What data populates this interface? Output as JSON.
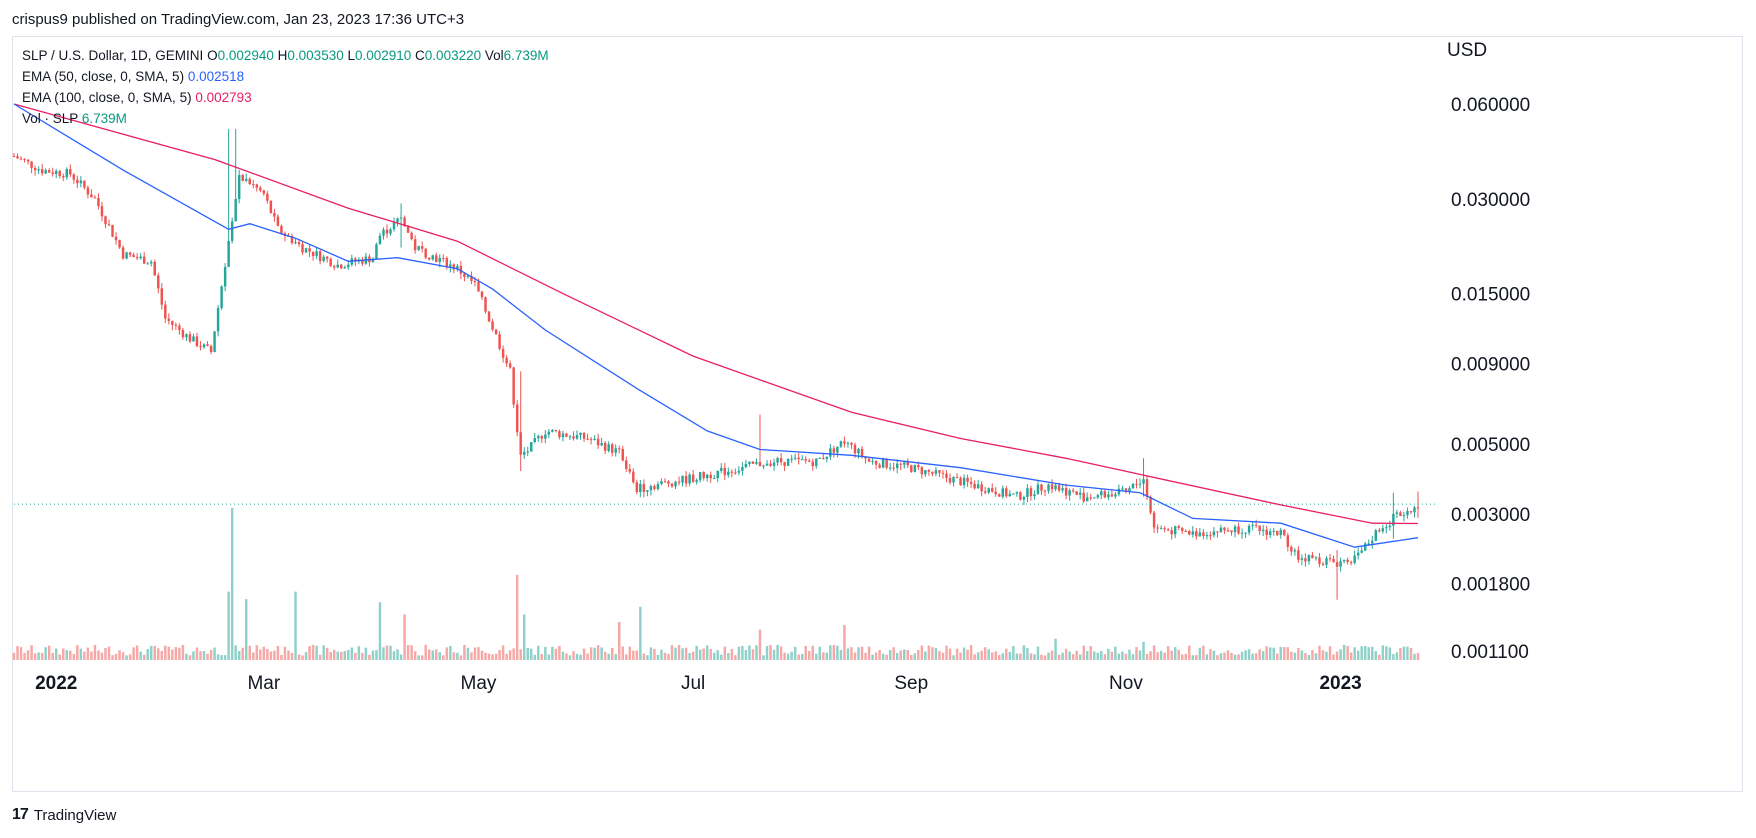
{
  "header": {
    "published_line": "crispus9 published on TradingView.com, Jan 23, 2023 17:36 UTC+3"
  },
  "legend": {
    "symbol": "SLP / U.S. Dollar, 1D, GEMINI",
    "ohlc": [
      {
        "key": "O",
        "value": "0.002940"
      },
      {
        "key": "H",
        "value": "0.003530"
      },
      {
        "key": "L",
        "value": "0.002910"
      },
      {
        "key": "C",
        "value": "0.003220"
      },
      {
        "key": "Vol",
        "value": "6.739M"
      }
    ],
    "ema50_label": "EMA (50, close, 0, SMA, 5)",
    "ema50_value": "0.002518",
    "ema100_label": "EMA (100, close, 0, SMA, 5)",
    "ema100_value": "0.002793",
    "vol_label": "Vol · SLP",
    "vol_value": "6.739M"
  },
  "footer": {
    "brand": "TradingView",
    "logo": "tradingview-logo-icon"
  },
  "colors": {
    "up": "#26a69a",
    "down": "#ef5350",
    "vol_up": "#8fd1c9",
    "vol_down": "#f5a8a6",
    "ema50": "#2962ff",
    "ema100": "#e91e63",
    "last_price_line": "#26a69a",
    "axis_text": "#131722"
  },
  "chart_data": {
    "type": "candlestick",
    "symbol": "SLP / U.S. Dollar",
    "interval": "1D",
    "exchange": "GEMINI",
    "price_axis_unit": "USD",
    "y_scale": "log",
    "y_ticks": [
      0.06,
      0.03,
      0.015,
      0.009,
      0.005,
      0.003,
      0.0018,
      0.0011
    ],
    "y_tick_labels": [
      "0.060000",
      "0.030000",
      "0.015000",
      "0.009000",
      "0.005000",
      "0.003000",
      "0.001800",
      "0.001100"
    ],
    "x_start": "2021-12-20",
    "x_end": "2023-01-23",
    "x_ticks": [
      {
        "date": "2022-01-01",
        "label": "2022",
        "bold": true
      },
      {
        "date": "2022-03-01",
        "label": "Mar",
        "bold": false
      },
      {
        "date": "2022-05-01",
        "label": "May",
        "bold": false
      },
      {
        "date": "2022-07-01",
        "label": "Jul",
        "bold": false
      },
      {
        "date": "2022-09-01",
        "label": "Sep",
        "bold": false
      },
      {
        "date": "2022-11-01",
        "label": "Nov",
        "bold": false
      },
      {
        "date": "2023-01-01",
        "label": "2023",
        "bold": true
      }
    ],
    "grid": false,
    "last_close": 0.00322,
    "close_path": [
      {
        "date": "2021-12-20",
        "close": 0.041
      },
      {
        "date": "2021-12-28",
        "close": 0.037
      },
      {
        "date": "2022-01-05",
        "close": 0.036
      },
      {
        "date": "2022-01-12",
        "close": 0.03
      },
      {
        "date": "2022-01-20",
        "close": 0.02
      },
      {
        "date": "2022-01-28",
        "close": 0.019
      },
      {
        "date": "2022-02-01",
        "close": 0.0125
      },
      {
        "date": "2022-02-08",
        "close": 0.0108
      },
      {
        "date": "2022-02-14",
        "close": 0.0098
      },
      {
        "date": "2022-02-19",
        "close": 0.022
      },
      {
        "date": "2022-02-22",
        "close": 0.036
      },
      {
        "date": "2022-03-01",
        "close": 0.031
      },
      {
        "date": "2022-03-05",
        "close": 0.024
      },
      {
        "date": "2022-03-12",
        "close": 0.021
      },
      {
        "date": "2022-03-22",
        "close": 0.0185
      },
      {
        "date": "2022-04-01",
        "close": 0.0195
      },
      {
        "date": "2022-04-03",
        "close": 0.023
      },
      {
        "date": "2022-04-09",
        "close": 0.026
      },
      {
        "date": "2022-04-13",
        "close": 0.021
      },
      {
        "date": "2022-04-25",
        "close": 0.018
      },
      {
        "date": "2022-04-30",
        "close": 0.016
      },
      {
        "date": "2022-05-06",
        "close": 0.011
      },
      {
        "date": "2022-05-10",
        "close": 0.0085
      },
      {
        "date": "2022-05-13",
        "close": 0.0045
      },
      {
        "date": "2022-05-20",
        "close": 0.0055
      },
      {
        "date": "2022-06-01",
        "close": 0.0052
      },
      {
        "date": "2022-06-10",
        "close": 0.0047
      },
      {
        "date": "2022-06-15",
        "close": 0.0036
      },
      {
        "date": "2022-06-20",
        "close": 0.0037
      },
      {
        "date": "2022-07-01",
        "close": 0.0039
      },
      {
        "date": "2022-07-15",
        "close": 0.0042
      },
      {
        "date": "2022-07-23",
        "close": 0.0044
      },
      {
        "date": "2022-08-05",
        "close": 0.0044
      },
      {
        "date": "2022-08-13",
        "close": 0.0051
      },
      {
        "date": "2022-08-20",
        "close": 0.0044
      },
      {
        "date": "2022-09-01",
        "close": 0.0042
      },
      {
        "date": "2022-09-15",
        "close": 0.0038
      },
      {
        "date": "2022-10-01",
        "close": 0.0034
      },
      {
        "date": "2022-10-10",
        "close": 0.0037
      },
      {
        "date": "2022-10-20",
        "close": 0.0034
      },
      {
        "date": "2022-11-01",
        "close": 0.0035
      },
      {
        "date": "2022-11-06",
        "close": 0.0039
      },
      {
        "date": "2022-11-09",
        "close": 0.0027
      },
      {
        "date": "2022-11-20",
        "close": 0.0026
      },
      {
        "date": "2022-12-05",
        "close": 0.0027
      },
      {
        "date": "2022-12-15",
        "close": 0.0026
      },
      {
        "date": "2022-12-20",
        "close": 0.0022
      },
      {
        "date": "2022-12-31",
        "close": 0.0021
      },
      {
        "date": "2023-01-06",
        "close": 0.0022
      },
      {
        "date": "2023-01-12",
        "close": 0.0027
      },
      {
        "date": "2023-01-16",
        "close": 0.0029
      },
      {
        "date": "2023-01-23",
        "close": 0.00322
      }
    ],
    "ema50": [
      {
        "date": "2021-12-20",
        "value": 0.06
      },
      {
        "date": "2022-01-20",
        "value": 0.037
      },
      {
        "date": "2022-02-19",
        "value": 0.024
      },
      {
        "date": "2022-02-25",
        "value": 0.025
      },
      {
        "date": "2022-03-10",
        "value": 0.0225
      },
      {
        "date": "2022-03-25",
        "value": 0.019
      },
      {
        "date": "2022-04-08",
        "value": 0.0195
      },
      {
        "date": "2022-04-25",
        "value": 0.018
      },
      {
        "date": "2022-05-05",
        "value": 0.0155
      },
      {
        "date": "2022-05-20",
        "value": 0.0115
      },
      {
        "date": "2022-06-15",
        "value": 0.0075
      },
      {
        "date": "2022-07-05",
        "value": 0.0055
      },
      {
        "date": "2022-07-20",
        "value": 0.0048
      },
      {
        "date": "2022-08-15",
        "value": 0.0046
      },
      {
        "date": "2022-09-15",
        "value": 0.0042
      },
      {
        "date": "2022-10-15",
        "value": 0.0037
      },
      {
        "date": "2022-11-05",
        "value": 0.0035
      },
      {
        "date": "2022-11-20",
        "value": 0.0029
      },
      {
        "date": "2022-12-15",
        "value": 0.0028
      },
      {
        "date": "2023-01-05",
        "value": 0.00235
      },
      {
        "date": "2023-01-23",
        "value": 0.002518
      }
    ],
    "ema100": [
      {
        "date": "2021-12-20",
        "value": 0.06
      },
      {
        "date": "2022-02-15",
        "value": 0.04
      },
      {
        "date": "2022-03-25",
        "value": 0.028
      },
      {
        "date": "2022-04-25",
        "value": 0.022
      },
      {
        "date": "2022-05-25",
        "value": 0.015
      },
      {
        "date": "2022-07-01",
        "value": 0.0095
      },
      {
        "date": "2022-08-15",
        "value": 0.0063
      },
      {
        "date": "2022-09-15",
        "value": 0.0052
      },
      {
        "date": "2022-10-15",
        "value": 0.0045
      },
      {
        "date": "2022-11-05",
        "value": 0.004
      },
      {
        "date": "2022-12-15",
        "value": 0.0032
      },
      {
        "date": "2023-01-10",
        "value": 0.0028
      },
      {
        "date": "2023-01-23",
        "value": 0.002793
      }
    ],
    "volume_spikes": [
      {
        "date": "2022-02-20",
        "rel": 1.0
      },
      {
        "date": "2022-02-19",
        "rel": 0.45
      },
      {
        "date": "2022-02-24",
        "rel": 0.4
      },
      {
        "date": "2022-03-10",
        "rel": 0.45
      },
      {
        "date": "2022-04-03",
        "rel": 0.38
      },
      {
        "date": "2022-04-10",
        "rel": 0.3
      },
      {
        "date": "2022-05-12",
        "rel": 0.56
      },
      {
        "date": "2022-05-14",
        "rel": 0.3
      },
      {
        "date": "2022-06-10",
        "rel": 0.25
      },
      {
        "date": "2022-06-16",
        "rel": 0.35
      },
      {
        "date": "2022-07-20",
        "rel": 0.2
      },
      {
        "date": "2022-08-13",
        "rel": 0.23
      },
      {
        "date": "2022-10-12",
        "rel": 0.14
      },
      {
        "date": "2022-11-06",
        "rel": 0.12
      },
      {
        "date": "2022-12-20",
        "rel": 0.08
      },
      {
        "date": "2023-01-04",
        "rel": 0.05
      },
      {
        "date": "2023-01-14",
        "rel": 0.09
      }
    ],
    "special_wicks": [
      {
        "date": "2022-02-19",
        "high": 0.05,
        "low": 0.02
      },
      {
        "date": "2022-02-21",
        "high": 0.05,
        "low": 0.028
      },
      {
        "date": "2022-04-09",
        "high": 0.029,
        "low": 0.021
      },
      {
        "date": "2022-05-13",
        "high": 0.0085,
        "low": 0.0041
      },
      {
        "date": "2022-07-20",
        "high": 0.0062,
        "low": 0.0043
      },
      {
        "date": "2022-11-06",
        "high": 0.0045,
        "low": 0.0034
      },
      {
        "date": "2022-12-31",
        "high": 0.0023,
        "low": 0.0016
      },
      {
        "date": "2023-01-16",
        "high": 0.0035,
        "low": 0.0025
      },
      {
        "date": "2023-01-23",
        "high": 0.00353,
        "low": 0.00291
      }
    ]
  }
}
